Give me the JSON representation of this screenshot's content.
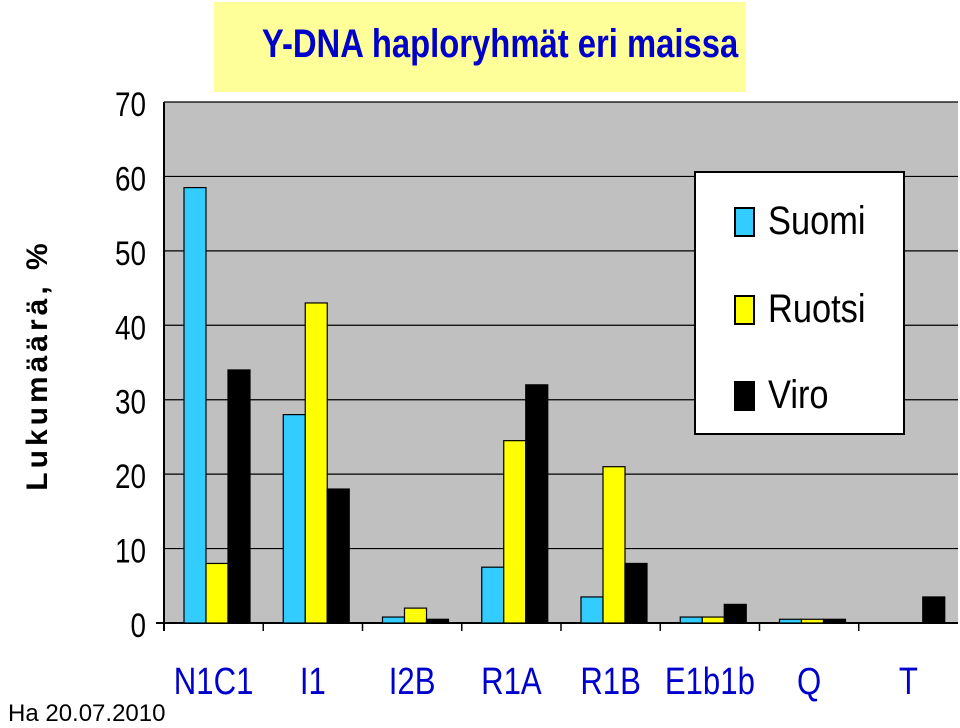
{
  "chart_data": {
    "type": "bar",
    "title": "Y-DNA haploryhmät eri maissa",
    "ylabel": "Lukumäärä, %",
    "xlabel": "",
    "ylim": [
      0,
      70
    ],
    "yticks": [
      0,
      10,
      20,
      30,
      40,
      50,
      60,
      70
    ],
    "grid": "horizontal",
    "legend_position": "right",
    "categories": [
      "N1C1",
      "I1",
      "I2B",
      "R1A",
      "R1B",
      "E1b1b",
      "Q",
      "T"
    ],
    "series": [
      {
        "name": "Suomi",
        "color": "#33ccff",
        "values": [
          58.5,
          28,
          0.8,
          7.5,
          3.5,
          0.8,
          0.5,
          0
        ]
      },
      {
        "name": "Ruotsi",
        "color": "#ffff00",
        "values": [
          8,
          43,
          2,
          24.5,
          21,
          0.8,
          0.5,
          0
        ]
      },
      {
        "name": "Viro",
        "color": "#000000",
        "values": [
          34,
          18,
          0.5,
          32,
          8,
          2.5,
          0.5,
          3.5
        ]
      }
    ]
  },
  "footer_text": "l Ha 20.07.2010"
}
